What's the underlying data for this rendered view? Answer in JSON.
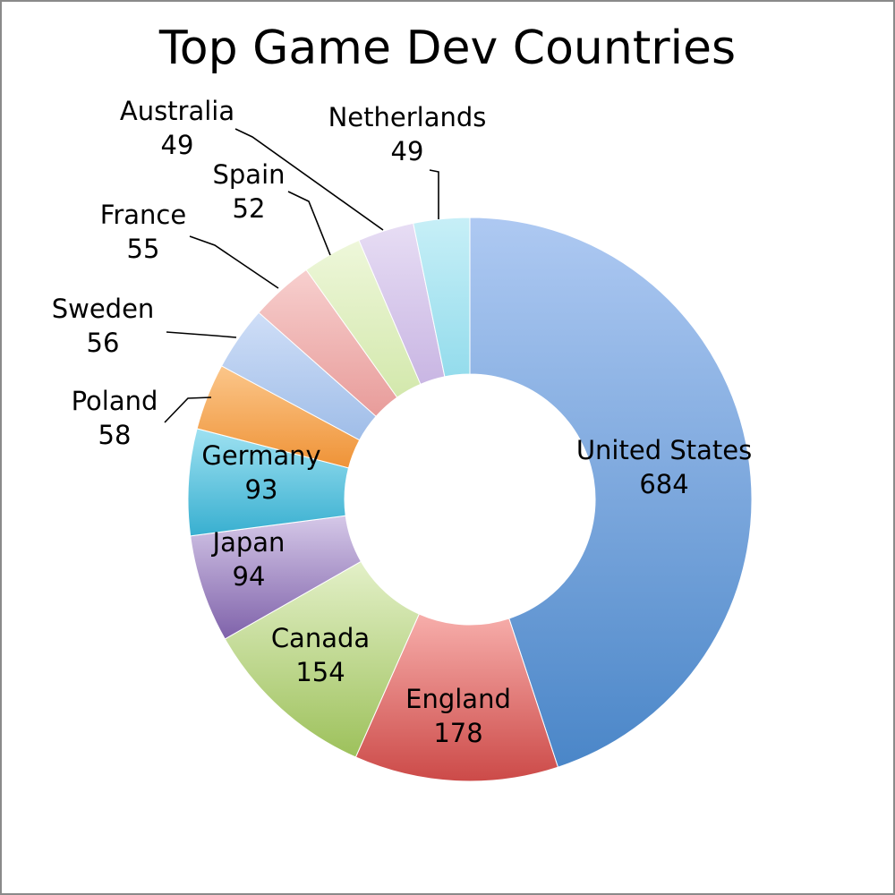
{
  "chart_data": {
    "type": "pie",
    "variant": "donut",
    "title": "Top Game Dev Countries",
    "legend": "none",
    "slices": [
      {
        "label": "United States",
        "value": 684,
        "color": "#6e9fdc",
        "color_light": "#aec9f2",
        "color_dark": "#4a86c8"
      },
      {
        "label": "England",
        "value": 178,
        "color": "#e27f7c",
        "color_light": "#f7aeab",
        "color_dark": "#cc4a48"
      },
      {
        "label": "Canada",
        "value": 154,
        "color": "#bcd88a",
        "color_light": "#e3f0c8",
        "color_dark": "#9dc15b"
      },
      {
        "label": "Japan",
        "value": 94,
        "color": "#a78ec6",
        "color_light": "#d5c8e8",
        "color_dark": "#7f62aa"
      },
      {
        "label": "Germany",
        "value": 93,
        "color": "#5fc8e0",
        "color_light": "#9ee1f1",
        "color_dark": "#38afd0"
      },
      {
        "label": "Poland",
        "value": 58,
        "color": "#f4a85a",
        "color_light": "#fbc68a",
        "color_dark": "#ef9337"
      },
      {
        "label": "Sweden",
        "value": 56,
        "color": "#b7cdf0",
        "color_light": "#cfdef7",
        "color_dark": "#9fbde8"
      },
      {
        "label": "France",
        "value": 55,
        "color": "#f0b4b2",
        "color_light": "#f7cfce",
        "color_dark": "#e89c9a"
      },
      {
        "label": "Spain",
        "value": 52,
        "color": "#e2f0c4",
        "color_light": "#eef7da",
        "color_dark": "#d3e8ac"
      },
      {
        "label": "Australia",
        "value": 49,
        "color": "#d8caec",
        "color_light": "#e7ddf4",
        "color_dark": "#c9b6e3"
      },
      {
        "label": "Netherlands",
        "value": 49,
        "color": "#aee6f2",
        "color_light": "#c7eff7",
        "color_dark": "#94dcec"
      }
    ]
  }
}
